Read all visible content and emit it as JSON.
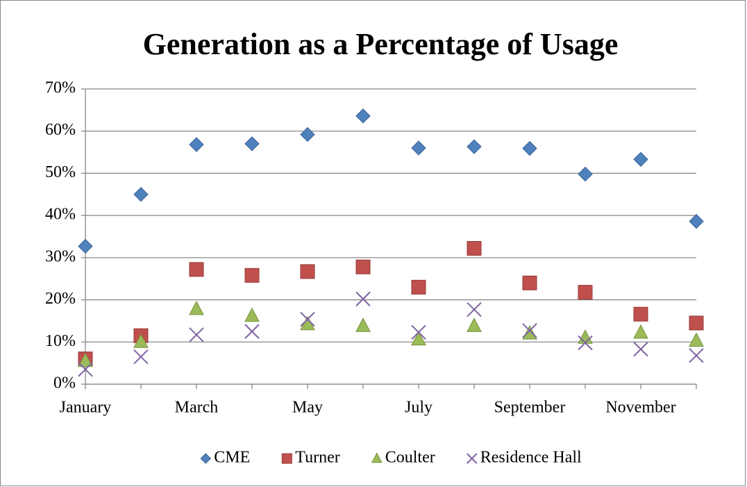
{
  "chart_data": {
    "type": "scatter",
    "title": "Generation as a Percentage of Usage",
    "categories": [
      "January",
      null,
      "March",
      null,
      "May",
      null,
      "July",
      null,
      "September",
      null,
      "November",
      null
    ],
    "series": [
      {
        "name": "CME",
        "color": "#4f81bd",
        "marker": "diamond",
        "values": [
          32.7,
          45.0,
          56.8,
          57.0,
          59.2,
          63.6,
          56.0,
          56.3,
          55.9,
          49.8,
          53.3,
          38.6
        ]
      },
      {
        "name": "Turner",
        "color": "#c0504d",
        "marker": "square",
        "values": [
          6.0,
          11.5,
          27.2,
          25.8,
          26.7,
          27.8,
          23.0,
          32.2,
          24.0,
          21.8,
          16.6,
          14.5
        ]
      },
      {
        "name": "Coulter",
        "color": "#9bbb59",
        "marker": "triangle",
        "values": [
          5.5,
          10.0,
          17.8,
          16.2,
          14.2,
          13.8,
          10.6,
          13.8,
          12.0,
          11.0,
          12.2,
          10.3
        ]
      },
      {
        "name": "Residence Hall",
        "color": "#8064a2",
        "marker": "x",
        "values": [
          3.5,
          6.5,
          11.7,
          12.5,
          15.4,
          20.2,
          12.3,
          17.7,
          12.7,
          9.8,
          8.3,
          6.8
        ]
      }
    ],
    "ylim": [
      0,
      70
    ],
    "yticks": [
      {
        "value": 0,
        "label": "0%"
      },
      {
        "value": 10,
        "label": "10%"
      },
      {
        "value": 20,
        "label": "20%"
      },
      {
        "value": 30,
        "label": "30%"
      },
      {
        "value": 40,
        "label": "40%"
      },
      {
        "value": 50,
        "label": "50%"
      },
      {
        "value": 60,
        "label": "60%"
      },
      {
        "value": 70,
        "label": "70%"
      }
    ],
    "grid": true,
    "legend": "bottom"
  }
}
